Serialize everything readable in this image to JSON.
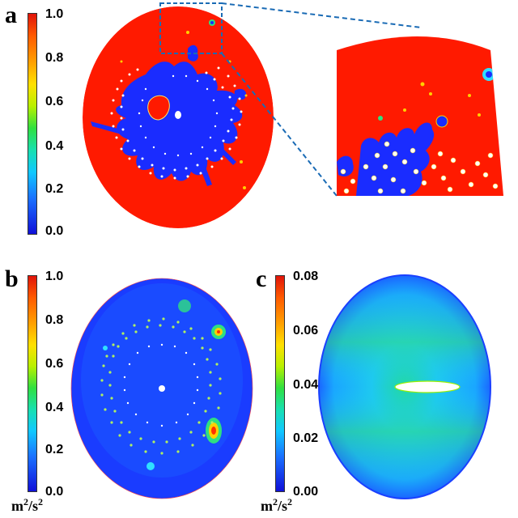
{
  "panels": {
    "a": {
      "letter": "a",
      "colorbar_ticks": [
        "1.0",
        "0.8",
        "0.6",
        "0.4",
        "0.2",
        "0.0"
      ]
    },
    "b": {
      "letter": "b",
      "colorbar_ticks": [
        "1.0",
        "0.8",
        "0.6",
        "0.4",
        "0.2",
        "0.0"
      ],
      "unit_main": "m",
      "unit_sup1": "2",
      "unit_mid": "/s",
      "unit_sup2": "2"
    },
    "c": {
      "letter": "c",
      "colorbar_ticks": [
        "0.08",
        "0.06",
        "0.04",
        "0.02",
        "0.00"
      ],
      "unit_main": "m",
      "unit_sup1": "2",
      "unit_mid": "/s",
      "unit_sup2": "2"
    }
  },
  "colors": {
    "red": "#ff1a00",
    "blue": "#1a2cff",
    "cyan": "#22d6ff",
    "green": "#25e06a",
    "zoom_line": "#1a6bb5"
  }
}
